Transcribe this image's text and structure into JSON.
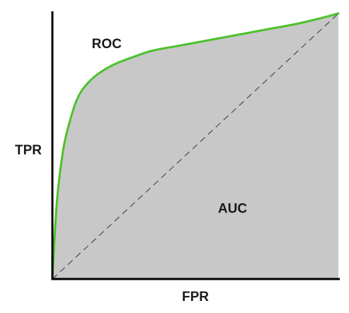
{
  "chart_data": {
    "type": "area",
    "xlabel": "FPR",
    "ylabel": "TPR",
    "xlim": [
      0,
      1
    ],
    "ylim": [
      0,
      1
    ],
    "grid": false,
    "legend": "none",
    "series": [
      {
        "name": "ROC",
        "color": "#4cc22a",
        "fill_color": "#c8c8c8",
        "x": [
          0,
          0.01,
          0.02,
          0.04,
          0.06,
          0.08,
          0.1,
          0.13,
          0.17,
          0.22,
          0.28,
          0.35,
          0.45,
          0.55,
          0.65,
          0.75,
          0.85,
          0.93,
          1.0
        ],
        "y": [
          0,
          0.2,
          0.34,
          0.5,
          0.59,
          0.66,
          0.705,
          0.745,
          0.78,
          0.81,
          0.835,
          0.86,
          0.88,
          0.9,
          0.92,
          0.94,
          0.96,
          0.98,
          1.0
        ]
      },
      {
        "name": "",
        "style": "dashed",
        "color": "#555555",
        "x": [
          0,
          1
        ],
        "y": [
          0,
          1
        ]
      }
    ],
    "annotations": [
      {
        "text": "ROC",
        "x": 0.19,
        "y": 0.87
      },
      {
        "text": "AUC",
        "x": 0.63,
        "y": 0.25
      }
    ]
  }
}
